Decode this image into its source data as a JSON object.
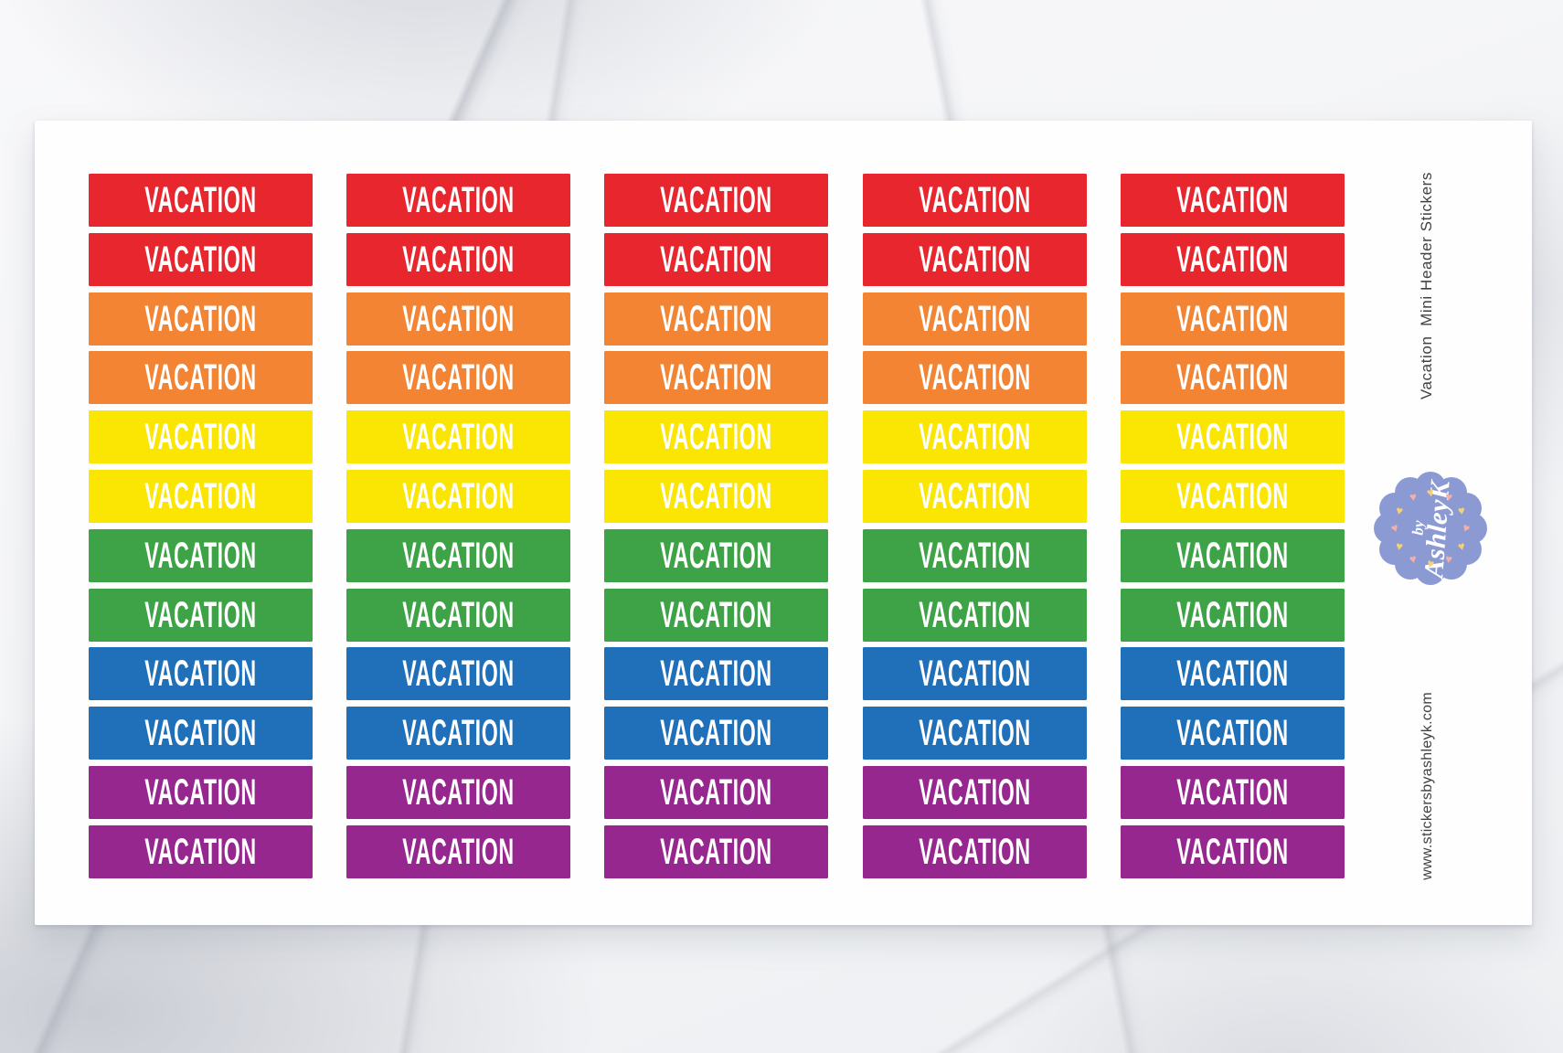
{
  "product_sheet": {
    "sticker_label": "VACATION",
    "grid": {
      "columns": 5,
      "rows": 12,
      "rows_per_color": 2,
      "total_stickers": 60
    },
    "sticker_colors": [
      {
        "name": "red",
        "hex": "#E8262D"
      },
      {
        "name": "orange",
        "hex": "#F28433"
      },
      {
        "name": "yellow",
        "hex": "#FBE502"
      },
      {
        "name": "green",
        "hex": "#3EA347"
      },
      {
        "name": "blue",
        "hex": "#1F70B8"
      },
      {
        "name": "purple",
        "hex": "#96278F"
      }
    ],
    "sticker_text_color": "#FFFFFF",
    "side_title": "Vacation  Mini Header Stickers",
    "side_url": "www.stickersbyashleyk.com",
    "side_text_color": "#414141",
    "badge": {
      "prefix": "by",
      "name": "AshleyK",
      "background": "#8C9AD4",
      "text_color": "#FFFFFF",
      "heart_colors": [
        "#F6D171",
        "#F5AFA5"
      ]
    }
  }
}
